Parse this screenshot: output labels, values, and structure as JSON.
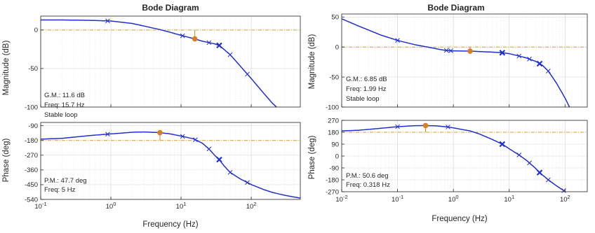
{
  "colors": {
    "curve": "#1f2fd6",
    "reference": "#d8a12a",
    "marker": "#d97f1f",
    "grid": "#dcdcdc",
    "frame": "#262626"
  },
  "chart_data": [
    {
      "type": "line",
      "title": "Bode Diagram",
      "xlabel": "Frequency (Hz)",
      "xscale": "log",
      "xlim": [
        0.1,
        500
      ],
      "xticks": [
        {
          "v": 0.1,
          "m": "10",
          "e": "-1"
        },
        {
          "v": 1,
          "m": "10",
          "e": "0"
        },
        {
          "v": 10,
          "m": "10",
          "e": "1"
        },
        {
          "v": 100,
          "m": "10",
          "e": "2"
        }
      ],
      "grid": true,
      "panels": [
        {
          "ylabel": "Magnitude (dB)",
          "ylim": [
            -100,
            18
          ],
          "yticks": [
            "0",
            "-50",
            "-100"
          ],
          "yticks_values": [
            0,
            -50,
            -100
          ],
          "reference_line": 0,
          "x": [
            0.1,
            0.2,
            0.5,
            1,
            2,
            3,
            5,
            7,
            10,
            15.7,
            20,
            30,
            35,
            50,
            70,
            100,
            150,
            200,
            300
          ],
          "y": [
            13,
            13,
            12.5,
            11.6,
            8.5,
            5,
            0.5,
            -3,
            -7,
            -11.6,
            -14.5,
            -18,
            -20,
            -32,
            -47,
            -63,
            -82,
            -95,
            -110
          ],
          "cross_markers": [
            0.9,
            10.5,
            25,
            50,
            88
          ],
          "bold_marker": 35,
          "highlight": {
            "x": 15.7,
            "y": -11.6
          },
          "annotations": [
            "G.M.: 11.6 dB",
            "Freq: 15.7 Hz",
            "Stable loop"
          ]
        },
        {
          "ylabel": "Phase (deg)",
          "ylim": [
            -540,
            -70
          ],
          "yticks": [
            "-90",
            "-180",
            "-270",
            "-360",
            "-450",
            "-540"
          ],
          "yticks_values": [
            -90,
            -180,
            -270,
            -360,
            -450,
            -540
          ],
          "reference_line": -180,
          "x": [
            0.1,
            0.2,
            0.5,
            1,
            2,
            3,
            5,
            7,
            10,
            15,
            20,
            25,
            30,
            35,
            40,
            50,
            70,
            100,
            150,
            200,
            300,
            500
          ],
          "y": [
            -172,
            -167,
            -150,
            -140,
            -130,
            -128,
            -132,
            -140,
            -153,
            -170,
            -196,
            -232,
            -270,
            -297,
            -330,
            -375,
            -415,
            -449,
            -480,
            -497,
            -515,
            -532
          ],
          "cross_markers": [
            0.9,
            10.5,
            16,
            25,
            50,
            88
          ],
          "bold_marker": 35,
          "highlight": {
            "x": 5,
            "y": -132
          },
          "annotations": [
            "P.M.: 47.7 deg",
            "Freq: 5 Hz"
          ]
        }
      ]
    },
    {
      "type": "line",
      "title": "Bode Diagram",
      "xlabel": "Frequency (Hz)",
      "xscale": "log",
      "xlim": [
        0.01,
        250
      ],
      "xticks": [
        {
          "v": 0.01,
          "m": "10",
          "e": "-2"
        },
        {
          "v": 0.1,
          "m": "10",
          "e": "-1"
        },
        {
          "v": 1,
          "m": "10",
          "e": "0"
        },
        {
          "v": 10,
          "m": "10",
          "e": "1"
        },
        {
          "v": 100,
          "m": "10",
          "e": "2"
        }
      ],
      "grid": true,
      "panels": [
        {
          "ylabel": "Magnitude (dB)",
          "ylim": [
            -100,
            55
          ],
          "yticks": [
            "50",
            "0",
            "-50",
            "-100"
          ],
          "yticks_values": [
            50,
            0,
            -50,
            -100
          ],
          "reference_line": 0,
          "x": [
            0.01,
            0.02,
            0.05,
            0.1,
            0.2,
            0.3,
            0.5,
            0.7,
            1,
            2,
            5,
            7.5,
            10,
            15,
            20,
            30,
            40,
            50,
            70,
            100,
            120
          ],
          "y": [
            47,
            35,
            20,
            11,
            4,
            1,
            -3,
            -5.5,
            -6.5,
            -6.85,
            -8.5,
            -9.5,
            -11,
            -15,
            -18,
            -24,
            -31,
            -40,
            -60,
            -85,
            -100
          ],
          "cross_markers": [
            0.1,
            0.75,
            0.9,
            15,
            23,
            50
          ],
          "bold_marker": 7.5,
          "bold_marker_2": 35,
          "highlight": {
            "x": 1.99,
            "y": -6.85
          },
          "annotations": [
            "G.M.: 6.85 dB",
            "Freq: 1.99 Hz",
            "Stable loop"
          ]
        },
        {
          "ylabel": "Phase (deg)",
          "ylim": [
            -270,
            270
          ],
          "yticks": [
            "270",
            "180",
            "90",
            "0",
            "-90",
            "-180",
            "-270"
          ],
          "yticks_values": [
            270,
            180,
            90,
            0,
            -90,
            -180,
            -270
          ],
          "reference_line": 180,
          "x": [
            0.01,
            0.02,
            0.05,
            0.1,
            0.2,
            0.318,
            0.5,
            0.8,
            1,
            2,
            3,
            5,
            7.5,
            10,
            15,
            20,
            30,
            35,
            50,
            70,
            100
          ],
          "y": [
            190,
            195,
            210,
            222,
            229.4,
            230.6,
            228,
            220,
            213,
            190,
            165,
            125,
            90,
            55,
            8,
            -30,
            -95,
            -125,
            -180,
            -225,
            -268
          ],
          "cross_markers": [
            0.1,
            0.8,
            15,
            23,
            50,
            95
          ],
          "bold_marker": 7.5,
          "bold_marker_2": 35,
          "highlight": {
            "x": 0.318,
            "y": 230.6
          },
          "annotations": [
            "P.M.: 50.6 deg",
            "Freq: 0.318 Hz"
          ]
        }
      ]
    }
  ]
}
